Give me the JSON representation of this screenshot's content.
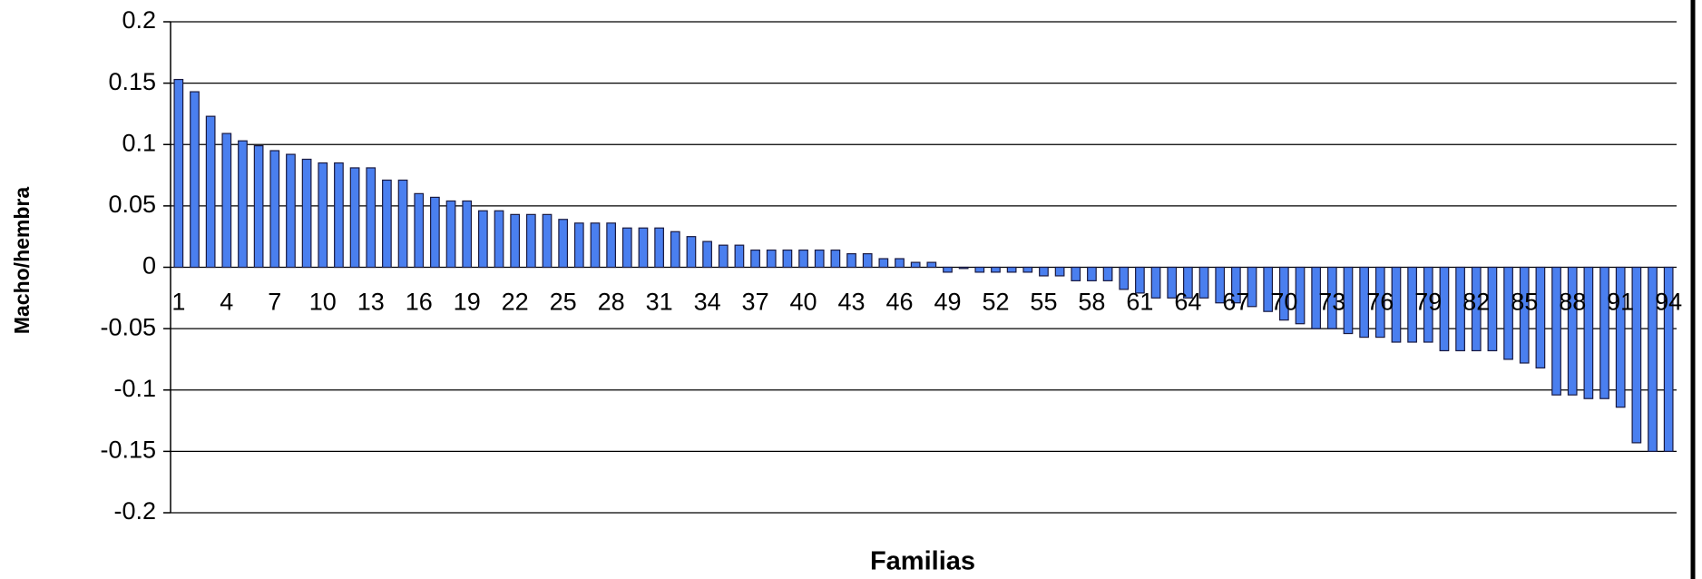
{
  "chart_data": {
    "type": "bar",
    "xlabel": "Familias",
    "ylabel": "Macho/hembra",
    "categories": [
      1,
      null,
      null,
      4,
      null,
      null,
      7,
      null,
      null,
      10,
      null,
      null,
      13,
      null,
      null,
      16,
      null,
      null,
      19,
      null,
      null,
      22,
      null,
      null,
      25,
      null,
      null,
      28,
      null,
      null,
      31,
      null,
      null,
      34,
      null,
      null,
      37,
      null,
      null,
      40,
      null,
      null,
      43,
      null,
      null,
      46,
      null,
      null,
      49,
      null,
      null,
      52,
      null,
      null,
      55,
      null,
      null,
      58,
      null,
      null,
      61,
      null,
      null,
      64,
      null,
      null,
      67,
      null,
      null,
      70,
      null,
      null,
      73,
      null,
      null,
      76,
      null,
      null,
      79,
      null,
      null,
      82,
      null,
      null,
      85,
      null,
      null,
      88,
      null,
      null,
      91,
      null,
      null,
      94
    ],
    "values": [
      0.153,
      0.143,
      0.123,
      0.109,
      0.103,
      0.099,
      0.095,
      0.092,
      0.088,
      0.085,
      0.085,
      0.081,
      0.081,
      0.071,
      0.071,
      0.06,
      0.057,
      0.054,
      0.054,
      0.046,
      0.046,
      0.043,
      0.043,
      0.043,
      0.039,
      0.036,
      0.036,
      0.036,
      0.032,
      0.032,
      0.032,
      0.029,
      0.025,
      0.021,
      0.018,
      0.018,
      0.014,
      0.014,
      0.014,
      0.014,
      0.014,
      0.014,
      0.011,
      0.011,
      0.007,
      0.007,
      0.004,
      0.004,
      -0.004,
      -0.001,
      -0.004,
      -0.004,
      -0.004,
      -0.004,
      -0.007,
      -0.007,
      -0.011,
      -0.011,
      -0.011,
      -0.018,
      -0.021,
      -0.025,
      -0.025,
      -0.025,
      -0.025,
      -0.029,
      -0.029,
      -0.032,
      -0.036,
      -0.043,
      -0.046,
      -0.05,
      -0.05,
      -0.054,
      -0.057,
      -0.057,
      -0.061,
      -0.061,
      -0.061,
      -0.068,
      -0.068,
      -0.068,
      -0.068,
      -0.075,
      -0.078,
      -0.082,
      -0.104,
      -0.104,
      -0.107,
      -0.107,
      -0.114,
      -0.143,
      -0.15,
      -0.15
    ],
    "color": "#4a7fef",
    "ylim": [
      -0.2,
      0.2
    ],
    "yticks": [
      0.2,
      0.15,
      0.1,
      0.05,
      0,
      -0.05,
      -0.1,
      -0.15,
      -0.2
    ],
    "grid": true
  }
}
